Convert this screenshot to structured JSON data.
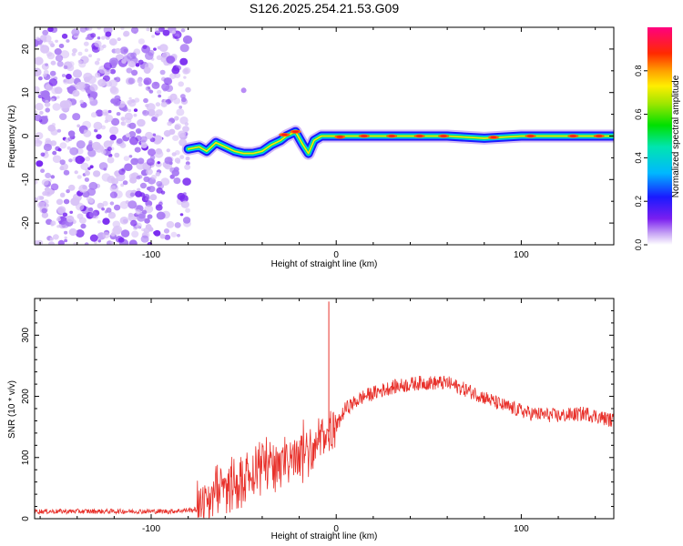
{
  "title": "S126.2025.254.21.53.G09",
  "colors": {
    "snr_line": "#e8312b",
    "speckle_light": "#d9c3f7",
    "speckle_dark": "#7a2bf0",
    "axis": "#000000"
  },
  "chart_data": [
    {
      "type": "heatmap",
      "name": "spectrogram",
      "xlabel": "Height of straight line (km)",
      "ylabel": "Frequency (Hz)",
      "xlim": [
        -163,
        150
      ],
      "ylim": [
        -25,
        25
      ],
      "xticks": [
        -100,
        0,
        100
      ],
      "yticks": [
        -20,
        -10,
        0,
        10,
        20
      ],
      "noise_region_x": [
        -163,
        -80
      ],
      "isolated_blob": {
        "x": -50,
        "y": 10.5
      },
      "ridge": [
        {
          "x": -80,
          "y": -3
        },
        {
          "x": -74,
          "y": -2.5
        },
        {
          "x": -70,
          "y": -3.5
        },
        {
          "x": -65,
          "y": -1.5
        },
        {
          "x": -60,
          "y": -2.5
        },
        {
          "x": -55,
          "y": -3.5
        },
        {
          "x": -50,
          "y": -4
        },
        {
          "x": -45,
          "y": -4
        },
        {
          "x": -40,
          "y": -3.5
        },
        {
          "x": -35,
          "y": -2
        },
        {
          "x": -30,
          "y": -1
        },
        {
          "x": -27,
          "y": 0
        },
        {
          "x": -22,
          "y": 1
        },
        {
          "x": -18,
          "y": -2
        },
        {
          "x": -15,
          "y": -4
        },
        {
          "x": -12,
          "y": -1
        },
        {
          "x": -8,
          "y": 0
        },
        {
          "x": 0,
          "y": 0
        },
        {
          "x": 20,
          "y": 0
        },
        {
          "x": 40,
          "y": 0
        },
        {
          "x": 60,
          "y": 0
        },
        {
          "x": 80,
          "y": -0.5
        },
        {
          "x": 100,
          "y": 0
        },
        {
          "x": 120,
          "y": 0
        },
        {
          "x": 150,
          "y": 0
        }
      ],
      "hot_spots": [
        {
          "x": -28,
          "y": 0.3
        },
        {
          "x": -22,
          "y": 1
        },
        {
          "x": 2,
          "y": -0.2
        },
        {
          "x": 15,
          "y": 0
        },
        {
          "x": 30,
          "y": 0
        },
        {
          "x": 45,
          "y": 0
        },
        {
          "x": 58,
          "y": 0
        },
        {
          "x": 85,
          "y": -0.3
        },
        {
          "x": 105,
          "y": 0
        },
        {
          "x": 128,
          "y": 0
        },
        {
          "x": 142,
          "y": 0
        }
      ]
    },
    {
      "type": "colorbar",
      "name": "amplitude-colorbar",
      "label": "Normalized spectral amplitude",
      "range": [
        0,
        1
      ],
      "ticks": [
        "0.0",
        "0.2",
        "0.4",
        "0.6",
        "0.8"
      ]
    },
    {
      "type": "line",
      "name": "snr",
      "xlabel": "Height of straight line (km)",
      "ylabel": "SNR (10 * v/v)",
      "xlim": [
        -163,
        150
      ],
      "ylim": [
        0,
        360
      ],
      "xticks": [
        -100,
        0,
        100
      ],
      "yticks": [
        0,
        100,
        200,
        300
      ],
      "spike": {
        "x": -4,
        "y": 355
      },
      "trend": [
        {
          "x": -163,
          "y": 12
        },
        {
          "x": -120,
          "y": 12
        },
        {
          "x": -90,
          "y": 12
        },
        {
          "x": -75,
          "y": 15
        },
        {
          "x": -65,
          "y": 40
        },
        {
          "x": -50,
          "y": 65
        },
        {
          "x": -40,
          "y": 85
        },
        {
          "x": -30,
          "y": 95
        },
        {
          "x": -20,
          "y": 105
        },
        {
          "x": -10,
          "y": 120
        },
        {
          "x": -5,
          "y": 140
        },
        {
          "x": 0,
          "y": 150
        },
        {
          "x": 5,
          "y": 180
        },
        {
          "x": 15,
          "y": 200
        },
        {
          "x": 30,
          "y": 215
        },
        {
          "x": 45,
          "y": 222
        },
        {
          "x": 60,
          "y": 222
        },
        {
          "x": 75,
          "y": 205
        },
        {
          "x": 90,
          "y": 185
        },
        {
          "x": 105,
          "y": 172
        },
        {
          "x": 120,
          "y": 168
        },
        {
          "x": 135,
          "y": 172
        },
        {
          "x": 150,
          "y": 160
        }
      ]
    }
  ]
}
